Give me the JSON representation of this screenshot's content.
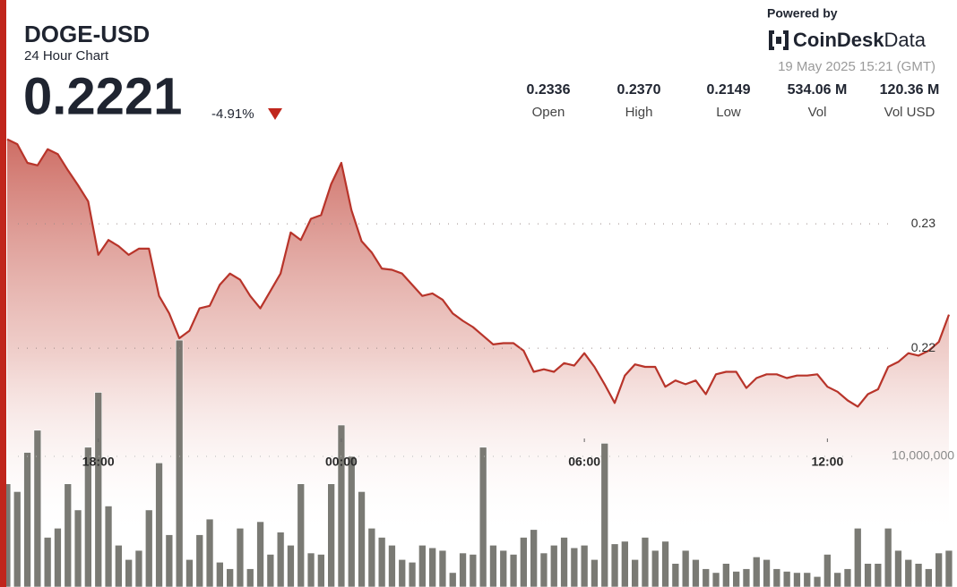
{
  "header": {
    "symbol": "DOGE-USD",
    "subtitle": "24 Hour Chart",
    "price": "0.2221",
    "change": "-4.91%",
    "powered_by": "Powered by",
    "brand": "CoinDesk",
    "brand_suffix": "Data",
    "timestamp": "19 May 2025 15:21 (GMT)",
    "stats": [
      {
        "value": "0.2336",
        "label": "Open"
      },
      {
        "value": "0.2370",
        "label": "High"
      },
      {
        "value": "0.2149",
        "label": "Low"
      },
      {
        "value": "534.06 M",
        "label": "Vol"
      },
      {
        "value": "120.36 M",
        "label": "Vol USD"
      }
    ]
  },
  "chart_data": {
    "type": "area",
    "x": [
      15.75,
      16,
      16.25,
      16.5,
      16.75,
      17,
      17.25,
      17.5,
      17.75,
      18,
      18.25,
      18.5,
      18.75,
      19,
      19.25,
      19.5,
      19.75,
      20,
      20.25,
      20.5,
      20.75,
      21,
      21.25,
      21.5,
      21.75,
      22,
      22.25,
      22.5,
      22.75,
      23,
      23.25,
      23.5,
      23.75,
      24,
      24.25,
      24.5,
      24.75,
      25,
      25.25,
      25.5,
      25.75,
      26,
      26.25,
      26.5,
      26.75,
      27,
      27.25,
      27.5,
      27.75,
      28,
      28.25,
      28.5,
      28.75,
      29,
      29.25,
      29.5,
      29.75,
      30,
      30.25,
      30.5,
      30.75,
      31,
      31.25,
      31.5,
      31.75,
      32,
      32.25,
      32.5,
      32.75,
      33,
      33.25,
      33.5,
      33.75,
      34,
      34.25,
      34.5,
      34.75,
      35,
      35.25,
      35.5,
      35.75,
      36,
      36.25,
      36.5,
      36.75,
      37,
      37.25,
      37.5,
      37.75,
      38,
      38.25,
      38.5,
      38.75,
      39
    ],
    "series": [
      {
        "color": "#b8342a",
        "values": [
          0.2368,
          0.2364,
          0.2349,
          0.2347,
          0.236,
          0.2356,
          0.2343,
          0.2331,
          0.2318,
          0.2275,
          0.2287,
          0.2282,
          0.2275,
          0.228,
          0.228,
          0.2242,
          0.2228,
          0.2208,
          0.2214,
          0.2232,
          0.2234,
          0.2251,
          0.226,
          0.2255,
          0.2242,
          0.2232,
          0.2246,
          0.226,
          0.2293,
          0.2287,
          0.2304,
          0.2307,
          0.2332,
          0.2349,
          0.2311,
          0.2286,
          0.2277,
          0.2264,
          0.2263,
          0.226,
          0.2251,
          0.2242,
          0.2244,
          0.2239,
          0.2228,
          0.2222,
          0.2217,
          0.221,
          0.2203,
          0.2204,
          0.2204,
          0.2198,
          0.2181,
          0.2183,
          0.2181,
          0.2188,
          0.2186,
          0.2196,
          0.2185,
          0.2171,
          0.2156,
          0.2178,
          0.2187,
          0.2185,
          0.2185,
          0.2169,
          0.2174,
          0.2171,
          0.2174,
          0.2163,
          0.2179,
          0.2181,
          0.2181,
          0.2168,
          0.2176,
          0.2179,
          0.2179,
          0.2176,
          0.2178,
          0.2178,
          0.2179,
          0.2169,
          0.2165,
          0.2158,
          0.2153,
          0.2163,
          0.2167,
          0.2185,
          0.2189,
          0.2196,
          0.2194,
          0.2198,
          0.2205,
          0.2227
        ]
      },
      {
        "color": "#6c6c65",
        "type": "bar",
        "axis": "y2",
        "values": [
          7900000,
          7300000,
          10300000,
          12000000,
          3800000,
          4500000,
          7900000,
          5900000,
          10700000,
          14900000,
          6200000,
          3200000,
          2100000,
          2800000,
          5900000,
          9500000,
          4000000,
          18900000,
          2100000,
          4000000,
          5200000,
          1900000,
          1400000,
          4500000,
          1400000,
          5000000,
          2500000,
          4200000,
          3200000,
          7900000,
          2600000,
          2500000,
          7900000,
          12400000,
          10000000,
          7300000,
          4500000,
          3800000,
          3200000,
          2100000,
          1900000,
          3200000,
          3000000,
          2800000,
          1100000,
          2600000,
          2500000,
          10700000,
          3200000,
          2800000,
          2500000,
          3800000,
          4400000,
          2600000,
          3200000,
          3800000,
          3000000,
          3200000,
          2100000,
          11000000,
          3300000,
          3500000,
          2100000,
          3800000,
          2800000,
          3500000,
          1800000,
          2800000,
          2100000,
          1400000,
          1100000,
          1800000,
          1200000,
          1400000,
          2300000,
          2100000,
          1400000,
          1200000,
          1100000,
          1100000,
          800000,
          2500000,
          1100000,
          1400000,
          4500000,
          1800000,
          1800000,
          4500000,
          2800000,
          2100000,
          1800000,
          1400000,
          2600000,
          2800000
        ]
      }
    ],
    "xlim": [
      15.75,
      39.2
    ],
    "xticks": [
      {
        "value": 18,
        "label": "18:00"
      },
      {
        "value": 24,
        "label": "00:00"
      },
      {
        "value": 30,
        "label": "06:00"
      },
      {
        "value": 36,
        "label": "12:00"
      }
    ],
    "ylim": [
      0.2008,
      0.2372
    ],
    "yticks": [
      0.22,
      0.23
    ],
    "y2lim": [
      0,
      34660000
    ],
    "y2ticks": [
      {
        "value": 10000000,
        "label": "10,000,000"
      }
    ],
    "grid": true
  }
}
